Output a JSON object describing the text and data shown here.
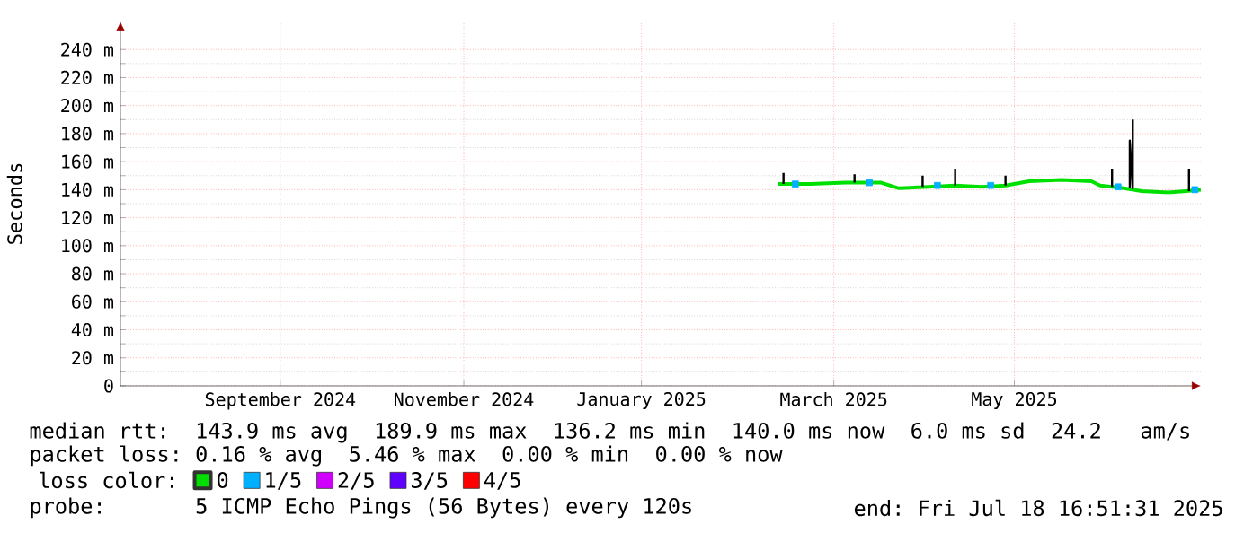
{
  "chart_data": {
    "type": "line",
    "ylabel": "Seconds",
    "xlim": [
      "2024-07-18",
      "2025-07-18"
    ],
    "xticks": [
      {
        "value": "2024-09-10",
        "label": "September 2024"
      },
      {
        "value": "2024-11-11",
        "label": "November 2024"
      },
      {
        "value": "2025-01-10",
        "label": "January 2025"
      },
      {
        "value": "2025-03-16",
        "label": "March 2025"
      },
      {
        "value": "2025-05-16",
        "label": "May 2025"
      }
    ],
    "ylim": [
      0,
      260
    ],
    "yticks": [
      0,
      {
        "value": 20,
        "label": "20 m"
      },
      {
        "value": 40,
        "label": "40 m"
      },
      {
        "value": 60,
        "label": "60 m"
      },
      {
        "value": 80,
        "label": "80 m"
      },
      {
        "value": 100,
        "label": "100 m"
      },
      {
        "value": 120,
        "label": "120 m"
      },
      {
        "value": 140,
        "label": "140 m"
      },
      {
        "value": 160,
        "label": "160 m"
      },
      {
        "value": 180,
        "label": "180 m"
      },
      {
        "value": 200,
        "label": "200 m"
      },
      {
        "value": 220,
        "label": "220 m"
      },
      {
        "value": 240,
        "label": "240 m"
      }
    ],
    "grid": true,
    "legend": "bottom",
    "legend_title": "loss color:",
    "series": [
      {
        "name": "0",
        "color": "#00e000",
        "x": [
          "2025-02-25",
          "2025-03-08",
          "2025-03-20",
          "2025-04-01",
          "2025-04-07",
          "2025-04-17",
          "2025-04-26",
          "2025-05-05",
          "2025-05-13",
          "2025-05-21",
          "2025-06-01",
          "2025-06-11",
          "2025-06-14",
          "2025-06-22",
          "2025-06-28",
          "2025-07-07",
          "2025-07-13",
          "2025-07-18"
        ],
        "values": [
          144,
          144,
          145,
          145,
          141,
          142,
          143,
          142,
          143,
          146,
          147,
          146,
          143,
          141,
          139,
          138,
          139,
          140
        ]
      },
      {
        "name": "1/5",
        "type": "scatter",
        "marker": "square",
        "color": "#00b0ff",
        "x": [
          "2025-03-03",
          "2025-03-28",
          "2025-04-20",
          "2025-05-08",
          "2025-06-20",
          "2025-07-16"
        ],
        "values": [
          144,
          145,
          143,
          143,
          142,
          140
        ]
      },
      {
        "name": "2/5",
        "color": "#d000ff"
      },
      {
        "name": "3/5",
        "color": "#6000ff"
      },
      {
        "name": "4/5",
        "color": "#ff0000"
      },
      {
        "type": "line",
        "color": "#000000",
        "x": [
          "2025-02-27",
          "2025-02-27",
          "2025-03-01",
          "2025-03-23",
          "2025-03-23",
          "2025-03-25",
          "2025-04-15",
          "2025-04-15",
          "2025-04-17",
          "2025-04-26",
          "2025-04-26",
          "2025-04-28",
          "2025-05-13",
          "2025-05-13",
          "2025-05-14",
          "2025-06-18",
          "2025-06-18",
          "2025-06-20",
          "2025-06-24",
          "2025-06-24",
          "2025-06-25",
          "2025-06-25",
          "2025-06-26",
          "2025-07-14",
          "2025-07-14"
        ],
        "values": [
          144,
          152,
          null,
          145,
          151,
          null,
          142,
          150,
          null,
          143,
          155,
          null,
          143,
          150,
          null,
          142,
          155,
          null,
          141,
          175,
          141,
          190,
          null,
          139,
          155
        ]
      }
    ],
    "annotations": [
      "median rtt:  143.9 ms avg  189.9 ms max  136.2 ms min  140.0 ms now  6.0 ms sd  24.2   am/s",
      "packet loss: 0.16 % avg  5.46 % max  0.00 % min  0.00 % now",
      "probe:       5 ICMP Echo Pings (56 Bytes) every 120s",
      "end: Fri Jul 18 16:51:31 2025"
    ]
  }
}
